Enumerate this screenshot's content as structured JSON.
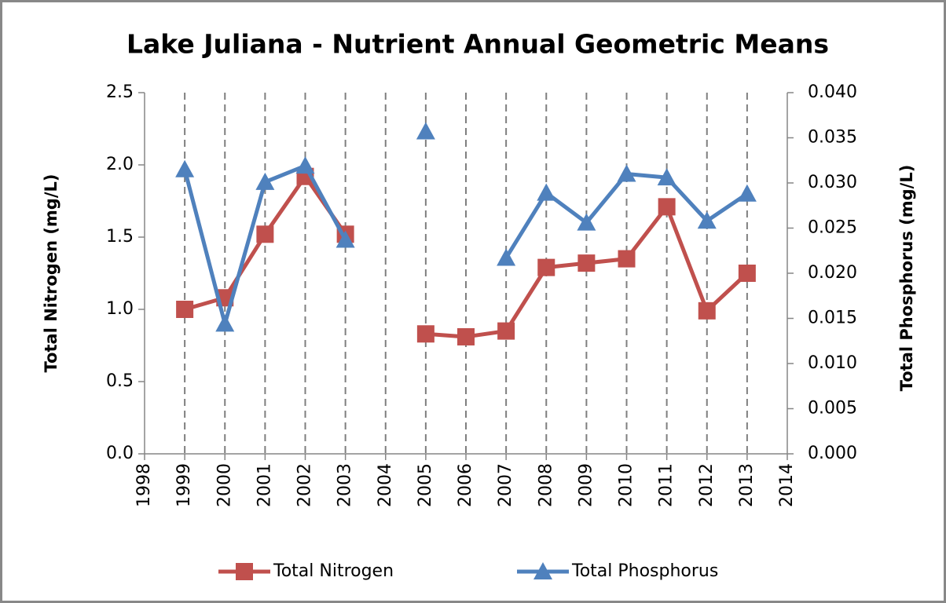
{
  "chart_data": {
    "type": "line",
    "title": "Lake Juliana - Nutrient Annual Geometric Means",
    "y_label": "Total Nitrogen (mg/L)",
    "y2_label": "Total Phosphorus (mg/L)",
    "x": [
      1999,
      2000,
      2001,
      2002,
      2003,
      2004,
      2005,
      2006,
      2007,
      2008,
      2009,
      2010,
      2011,
      2012,
      2013
    ],
    "series": [
      {
        "name": "Total Nitrogen",
        "color": "#c0504d",
        "marker": "square",
        "values": [
          1.0,
          1.08,
          1.52,
          1.92,
          1.52,
          null,
          0.83,
          0.81,
          0.85,
          1.29,
          1.32,
          1.35,
          1.71,
          0.99,
          1.25
        ]
      },
      {
        "name": "Total Phosphorus",
        "color": "#4f81bd",
        "marker": "triangle",
        "axis": "y2",
        "values": [
          0.0315,
          0.0144,
          0.0301,
          0.0319,
          0.0237,
          null,
          0.0357,
          null,
          0.0217,
          0.0289,
          0.0256,
          0.031,
          0.0306,
          0.0258,
          0.0288
        ]
      }
    ],
    "xlim": [
      1998,
      2014
    ],
    "xticks": [
      1998,
      1999,
      2000,
      2001,
      2002,
      2003,
      2004,
      2005,
      2006,
      2007,
      2008,
      2009,
      2010,
      2011,
      2012,
      2013,
      2014
    ],
    "ylim": [
      0,
      2.5
    ],
    "yticks": [
      {
        "value": 0,
        "label": "0.0"
      },
      {
        "value": 0.5,
        "label": "0.5"
      },
      {
        "value": 1,
        "label": "1.0"
      },
      {
        "value": 1.5,
        "label": "1.5"
      },
      {
        "value": 2,
        "label": "2.0"
      },
      {
        "value": 2.5,
        "label": "2.5"
      }
    ],
    "y2lim": [
      0,
      0.04
    ],
    "y2ticks": [
      {
        "value": 0,
        "label": "0.000"
      },
      {
        "value": 0.005,
        "label": "0.005"
      },
      {
        "value": 0.01,
        "label": "0.010"
      },
      {
        "value": 0.015,
        "label": "0.015"
      },
      {
        "value": 0.02,
        "label": "0.020"
      },
      {
        "value": 0.025,
        "label": "0.025"
      },
      {
        "value": 0.03,
        "label": "0.030"
      },
      {
        "value": 0.035,
        "label": "0.035"
      },
      {
        "value": 0.04,
        "label": "0.040"
      }
    ],
    "grid": "x",
    "legend": "bottom"
  }
}
